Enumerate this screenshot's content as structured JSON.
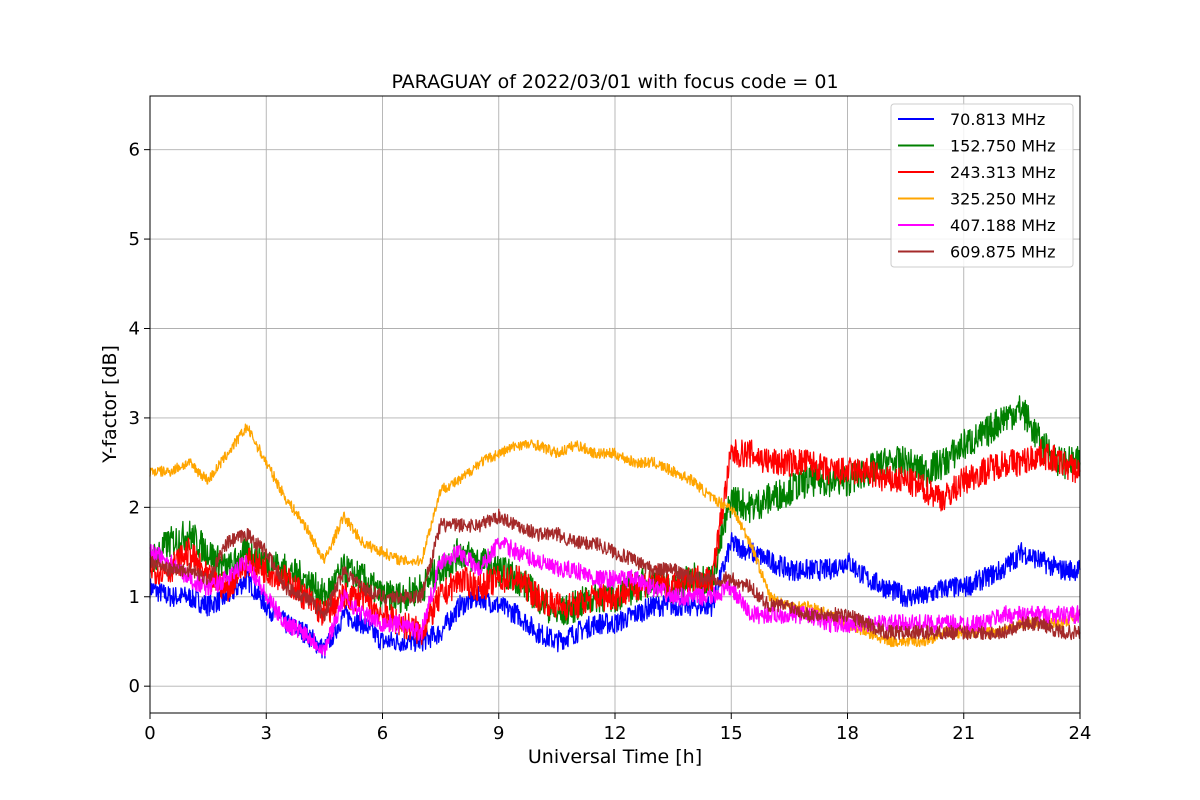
{
  "chart_data": {
    "type": "line",
    "title": "PARAGUAY of 2022/03/01 with focus code = 01",
    "xlabel": "Universal Time [h]",
    "ylabel": "Y-factor [dB]",
    "xlim": [
      0,
      24
    ],
    "ylim": [
      -0.3,
      6.6
    ],
    "xticks": [
      0,
      3,
      6,
      9,
      12,
      15,
      18,
      21,
      24
    ],
    "xtick_labels": [
      "0",
      "3",
      "6",
      "9",
      "12",
      "15",
      "18",
      "21",
      "24"
    ],
    "yticks": [
      0,
      1,
      2,
      3,
      4,
      5,
      6
    ],
    "ytick_labels": [
      "0",
      "1",
      "2",
      "3",
      "4",
      "5",
      "6"
    ],
    "grid": true,
    "legend_position": "top-right",
    "x": [
      0,
      0.5,
      1,
      1.5,
      2,
      2.5,
      3,
      3.5,
      4,
      4.5,
      5,
      5.5,
      6,
      6.5,
      7,
      7.5,
      8,
      8.5,
      9,
      9.5,
      10,
      10.5,
      11,
      11.5,
      12,
      12.5,
      13,
      13.5,
      14,
      14.5,
      15,
      15.5,
      16,
      16.5,
      17,
      17.5,
      18,
      18.5,
      19,
      19.5,
      20,
      20.5,
      21,
      21.5,
      22,
      22.5,
      23,
      23.5,
      24
    ],
    "series": [
      {
        "name": " 70.813 MHz",
        "color": "#0000ff",
        "values": [
          1.1,
          1.0,
          1.0,
          0.9,
          1.0,
          1.2,
          0.9,
          0.7,
          0.6,
          0.4,
          0.8,
          0.7,
          0.5,
          0.5,
          0.5,
          0.6,
          0.9,
          1.0,
          0.9,
          0.8,
          0.6,
          0.5,
          0.6,
          0.7,
          0.7,
          0.8,
          0.9,
          0.9,
          0.9,
          0.9,
          1.6,
          1.5,
          1.4,
          1.3,
          1.3,
          1.3,
          1.4,
          1.2,
          1.1,
          1.0,
          1.0,
          1.1,
          1.1,
          1.2,
          1.3,
          1.5,
          1.4,
          1.3,
          1.3
        ]
      },
      {
        "name": "152.750 MHz",
        "color": "#008000",
        "values": [
          1.4,
          1.6,
          1.7,
          1.5,
          1.3,
          1.5,
          1.4,
          1.3,
          1.2,
          1.0,
          1.3,
          1.2,
          1.0,
          1.0,
          1.1,
          1.3,
          1.5,
          1.4,
          1.3,
          1.2,
          1.0,
          0.8,
          0.9,
          1.0,
          1.0,
          1.1,
          1.2,
          1.1,
          1.2,
          1.2,
          2.1,
          2.0,
          2.1,
          2.2,
          2.3,
          2.3,
          2.3,
          2.4,
          2.5,
          2.5,
          2.4,
          2.5,
          2.7,
          2.8,
          3.0,
          3.1,
          2.7,
          2.5,
          2.5
        ]
      },
      {
        "name": "243.313 MHz",
        "color": "#ff0000",
        "values": [
          1.3,
          1.3,
          1.5,
          1.2,
          1.1,
          1.4,
          1.3,
          1.2,
          1.0,
          0.8,
          1.0,
          1.0,
          0.8,
          0.7,
          0.6,
          1.0,
          1.2,
          1.1,
          1.2,
          1.2,
          1.0,
          0.9,
          0.9,
          1.0,
          1.0,
          1.1,
          1.2,
          1.1,
          1.2,
          1.2,
          2.6,
          2.6,
          2.5,
          2.5,
          2.5,
          2.4,
          2.4,
          2.4,
          2.3,
          2.3,
          2.2,
          2.1,
          2.3,
          2.4,
          2.5,
          2.5,
          2.6,
          2.5,
          2.4
        ]
      },
      {
        "name": "325.250 MHz",
        "color": "#ffa500",
        "values": [
          2.4,
          2.4,
          2.5,
          2.3,
          2.6,
          2.9,
          2.5,
          2.1,
          1.8,
          1.4,
          1.9,
          1.6,
          1.5,
          1.4,
          1.4,
          2.2,
          2.3,
          2.5,
          2.6,
          2.7,
          2.7,
          2.6,
          2.7,
          2.6,
          2.6,
          2.5,
          2.5,
          2.4,
          2.3,
          2.1,
          2.0,
          1.6,
          1.0,
          0.9,
          0.9,
          0.8,
          0.7,
          0.6,
          0.5,
          0.5,
          0.5,
          0.6,
          0.6,
          0.6,
          0.6,
          0.7,
          0.7,
          0.7,
          0.8
        ]
      },
      {
        "name": "407.188 MHz",
        "color": "#ff00ff",
        "values": [
          1.5,
          1.4,
          1.2,
          1.1,
          1.2,
          1.4,
          1.0,
          0.7,
          0.6,
          0.4,
          1.0,
          0.8,
          0.7,
          0.7,
          0.6,
          1.4,
          1.5,
          1.3,
          1.6,
          1.5,
          1.4,
          1.3,
          1.3,
          1.2,
          1.2,
          1.2,
          1.1,
          1.0,
          1.0,
          1.0,
          1.1,
          0.8,
          0.8,
          0.8,
          0.8,
          0.7,
          0.7,
          0.7,
          0.7,
          0.7,
          0.7,
          0.7,
          0.7,
          0.7,
          0.8,
          0.8,
          0.8,
          0.8,
          0.8
        ]
      },
      {
        "name": "609.875 MHz",
        "color": "#a52a2a",
        "values": [
          1.4,
          1.3,
          1.3,
          1.2,
          1.6,
          1.7,
          1.5,
          1.1,
          1.0,
          0.8,
          1.3,
          1.1,
          1.0,
          1.0,
          1.0,
          1.8,
          1.8,
          1.8,
          1.9,
          1.8,
          1.7,
          1.7,
          1.6,
          1.6,
          1.5,
          1.4,
          1.3,
          1.3,
          1.2,
          1.2,
          1.2,
          1.1,
          0.9,
          0.9,
          0.8,
          0.8,
          0.8,
          0.7,
          0.6,
          0.6,
          0.6,
          0.6,
          0.6,
          0.6,
          0.6,
          0.7,
          0.7,
          0.6,
          0.6
        ]
      }
    ]
  }
}
